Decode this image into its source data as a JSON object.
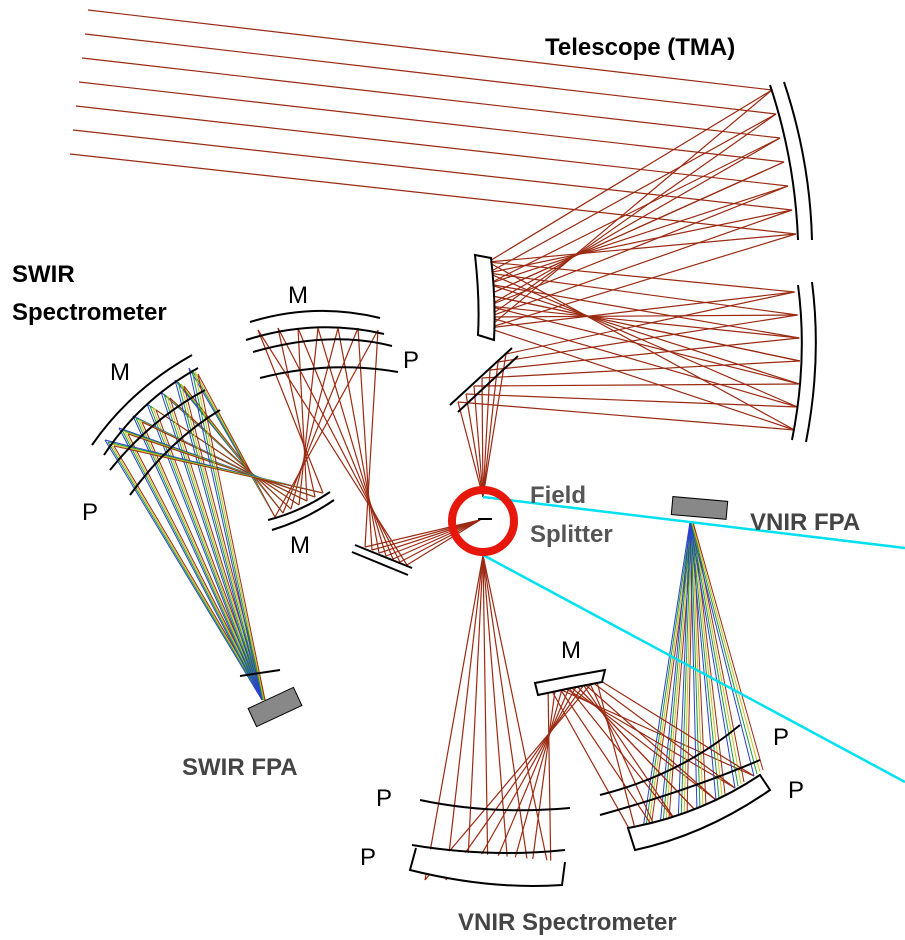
{
  "labels": {
    "telescope": "Telescope (TMA)",
    "swir_spectrometer": [
      "SWIR",
      "Spectrometer"
    ],
    "field_splitter": [
      "Field",
      "Splitter"
    ],
    "vnir_fpa": "VNIR FPA",
    "swir_fpa": "SWIR FPA",
    "vnir_spectrometer": "VNIR Spectrometer"
  },
  "element_labels": [
    "M",
    "P",
    "M",
    "P",
    "M",
    "M",
    "P",
    "P",
    "P",
    "P"
  ]
}
